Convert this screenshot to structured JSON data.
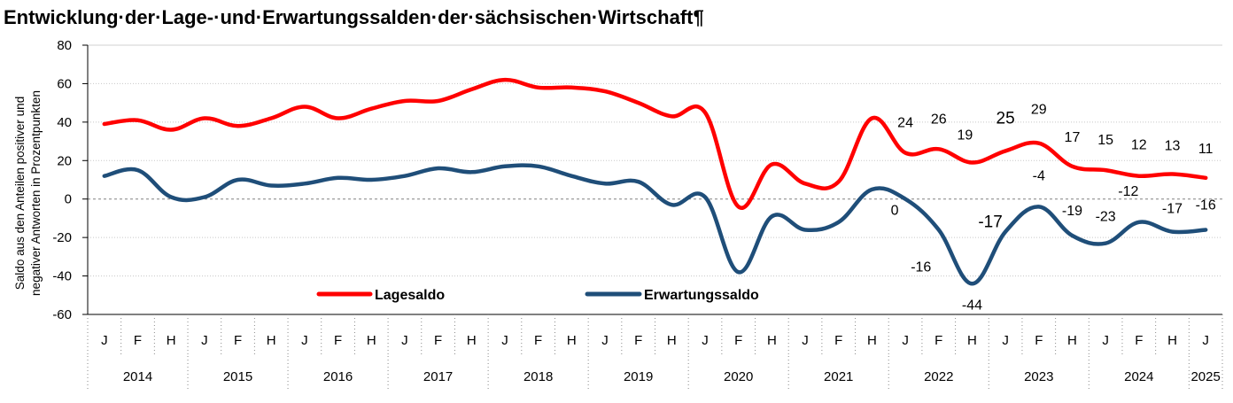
{
  "chart_data": {
    "type": "line",
    "title": "Entwicklung·der·Lage-·und·Erwartungssalden·der·sächsischen·Wirtschaft¶",
    "ylabel_line1": "Saldo aus den Anteilen positiver und",
    "ylabel_line2": "negativer Antworten in Prozentpunkten",
    "ylim": [
      -60,
      80
    ],
    "yticks": [
      -60,
      -40,
      -20,
      0,
      20,
      40,
      60,
      80
    ],
    "ytick_labels": [
      "-60",
      "-40",
      "-20",
      "0",
      "20",
      "40",
      "60",
      "80"
    ],
    "grid": "horizontal dotted, dashed zero line",
    "x": [
      "J",
      "F",
      "H",
      "J",
      "F",
      "H",
      "J",
      "F",
      "H",
      "J",
      "F",
      "H",
      "J",
      "F",
      "H",
      "J",
      "F",
      "H",
      "J",
      "F",
      "H",
      "J",
      "F",
      "H",
      "J",
      "F",
      "H",
      "J",
      "F",
      "H",
      "J",
      "F",
      "H",
      "J"
    ],
    "years": [
      {
        "label": "2014",
        "start": 0,
        "end": 3
      },
      {
        "label": "2015",
        "start": 3,
        "end": 6
      },
      {
        "label": "2016",
        "start": 6,
        "end": 9
      },
      {
        "label": "2017",
        "start": 9,
        "end": 12
      },
      {
        "label": "2018",
        "start": 12,
        "end": 15
      },
      {
        "label": "2019",
        "start": 15,
        "end": 18
      },
      {
        "label": "2020",
        "start": 18,
        "end": 21
      },
      {
        "label": "2021",
        "start": 21,
        "end": 24
      },
      {
        "label": "2022",
        "start": 24,
        "end": 27
      },
      {
        "label": "2023",
        "start": 27,
        "end": 30
      },
      {
        "label": "2024",
        "start": 30,
        "end": 33
      },
      {
        "label": "2025",
        "start": 33,
        "end": 34
      }
    ],
    "legend_position": "lower-left inside plot",
    "series": [
      {
        "name": "Lagesaldo",
        "color": "#FF0000",
        "values": [
          39,
          41,
          36,
          42,
          38,
          42,
          48,
          42,
          47,
          51,
          51,
          57,
          62,
          58,
          58,
          56,
          50,
          43,
          45,
          -4,
          18,
          8,
          9,
          42,
          24,
          26,
          19,
          25,
          29,
          17,
          15,
          12,
          13,
          11
        ],
        "data_labels": [
          {
            "index": 24,
            "text": "24"
          },
          {
            "index": 25,
            "text": "26"
          },
          {
            "index": 26,
            "text": "19"
          },
          {
            "index": 27,
            "text": "25"
          },
          {
            "index": 28,
            "text": "29"
          },
          {
            "index": 29,
            "text": "17"
          },
          {
            "index": 30,
            "text": "15"
          },
          {
            "index": 31,
            "text": "12"
          },
          {
            "index": 32,
            "text": "13"
          },
          {
            "index": 33,
            "text": "11"
          }
        ]
      },
      {
        "name": "Erwartungssaldo",
        "color": "#1F4E79",
        "values": [
          12,
          15,
          1,
          1,
          10,
          7,
          8,
          11,
          10,
          12,
          16,
          14,
          17,
          17,
          12,
          8,
          9,
          -3,
          1,
          -38,
          -9,
          -16,
          -12,
          5,
          0,
          -16,
          -44,
          -17,
          -4,
          -19,
          -23,
          -12,
          -17,
          -16
        ],
        "data_labels": [
          {
            "index": 24,
            "text": "0"
          },
          {
            "index": 25,
            "text": "-16"
          },
          {
            "index": 26,
            "text": "-44"
          },
          {
            "index": 27,
            "text": "-17"
          },
          {
            "index": 28,
            "text": "-4"
          },
          {
            "index": 29,
            "text": "-19"
          },
          {
            "index": 30,
            "text": "-23"
          },
          {
            "index": 31,
            "text": "-12"
          },
          {
            "index": 32,
            "text": "-17"
          },
          {
            "index": 33,
            "text": "-16"
          }
        ]
      }
    ]
  }
}
